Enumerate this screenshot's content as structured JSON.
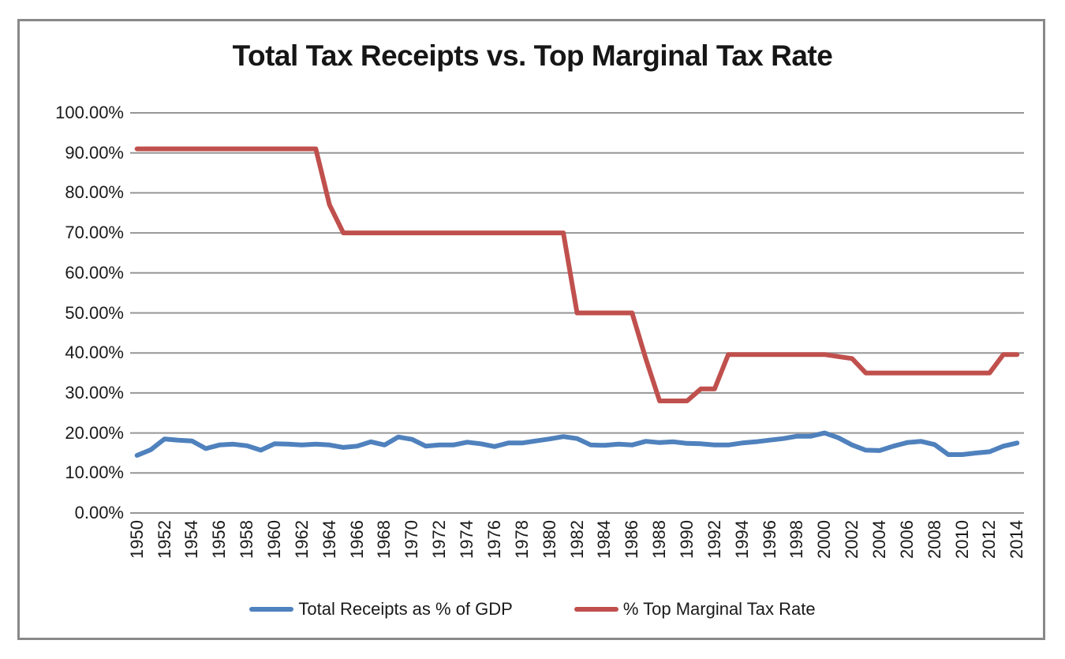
{
  "chart_data": {
    "type": "line",
    "title": "Total Tax Receipts vs. Top Marginal Tax Rate",
    "x": [
      1950,
      1951,
      1952,
      1953,
      1954,
      1955,
      1956,
      1957,
      1958,
      1959,
      1960,
      1961,
      1962,
      1963,
      1964,
      1965,
      1966,
      1967,
      1968,
      1969,
      1970,
      1971,
      1972,
      1973,
      1974,
      1975,
      1976,
      1977,
      1978,
      1979,
      1980,
      1981,
      1982,
      1983,
      1984,
      1985,
      1986,
      1987,
      1988,
      1989,
      1990,
      1991,
      1992,
      1993,
      1994,
      1995,
      1996,
      1997,
      1998,
      1999,
      2000,
      2001,
      2002,
      2003,
      2004,
      2005,
      2006,
      2007,
      2008,
      2009,
      2010,
      2011,
      2012,
      2013,
      2014
    ],
    "series": [
      {
        "name": "Total Receipts as % of GDP",
        "color": "#4F81BD",
        "data_name": "total-receipts-line",
        "values": [
          14.4,
          15.8,
          18.5,
          18.2,
          18.0,
          16.1,
          17.0,
          17.2,
          16.8,
          15.7,
          17.3,
          17.2,
          17.0,
          17.2,
          17.0,
          16.4,
          16.7,
          17.8,
          17.0,
          19.0,
          18.4,
          16.7,
          17.0,
          17.0,
          17.7,
          17.3,
          16.6,
          17.5,
          17.5,
          18.0,
          18.5,
          19.1,
          18.6,
          17.0,
          16.9,
          17.2,
          17.0,
          17.9,
          17.6,
          17.8,
          17.4,
          17.3,
          17.0,
          17.0,
          17.5,
          17.8,
          18.2,
          18.6,
          19.2,
          19.2,
          20.0,
          18.8,
          17.0,
          15.7,
          15.6,
          16.7,
          17.6,
          17.9,
          17.1,
          14.6,
          14.6,
          15.0,
          15.3,
          16.7,
          17.5
        ]
      },
      {
        "name": "% Top Marginal Tax Rate",
        "color": "#C0504D",
        "data_name": "top-marginal-rate-line",
        "values": [
          91,
          91,
          91,
          91,
          91,
          91,
          91,
          91,
          91,
          91,
          91,
          91,
          91,
          91,
          77,
          70,
          70,
          70,
          70,
          70,
          70,
          70,
          70,
          70,
          70,
          70,
          70,
          70,
          70,
          70,
          70,
          70,
          50,
          50,
          50,
          50,
          50,
          38.5,
          28,
          28,
          28,
          31,
          31,
          39.6,
          39.6,
          39.6,
          39.6,
          39.6,
          39.6,
          39.6,
          39.6,
          39.1,
          38.6,
          35,
          35,
          35,
          35,
          35,
          35,
          35,
          35,
          35,
          35,
          39.6,
          39.6
        ]
      }
    ],
    "ylim": [
      0,
      100
    ],
    "ytick_step": 10,
    "y_tick_labels": [
      "100.00%",
      "90.00%",
      "80.00%",
      "70.00%",
      "60.00%",
      "50.00%",
      "40.00%",
      "30.00%",
      "20.00%",
      "10.00%",
      "0.00%"
    ],
    "xtick_step": 2,
    "x_tick_labels": [
      "1950",
      "1952",
      "1954",
      "1956",
      "1958",
      "1960",
      "1962",
      "1964",
      "1966",
      "1968",
      "1970",
      "1972",
      "1974",
      "1976",
      "1978",
      "1980",
      "1982",
      "1984",
      "1986",
      "1988",
      "1990",
      "1992",
      "1994",
      "1996",
      "1998",
      "2000",
      "2002",
      "2004",
      "2006",
      "2008",
      "2010",
      "2012",
      "2014"
    ],
    "grid": "horizontal",
    "legend_position": "bottom",
    "colors": {
      "gridline": "#969696",
      "frame_border": "#898989",
      "text": "#1a1a1a"
    }
  }
}
